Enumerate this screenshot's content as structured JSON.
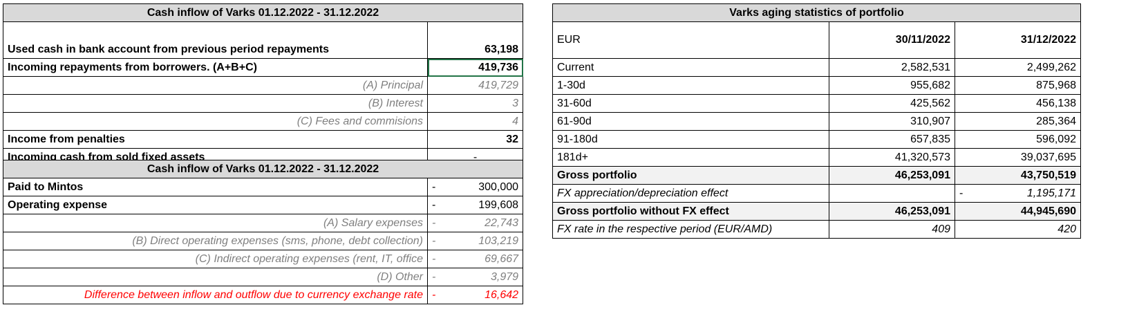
{
  "left_table": {
    "title": "Cash inflow of Varks 01.12.2022 - 31.12.2022",
    "rows": [
      {
        "label": "Used cash in bank account from previous period repayments",
        "value": "63,198"
      },
      {
        "label": "Incoming repayments from borrowers. (A+B+C)",
        "value": "419,736"
      },
      {
        "label": "(A) Principal",
        "value": "419,729"
      },
      {
        "label": "(B) Interest",
        "value": "3"
      },
      {
        "label": "(C) Fees and commisions",
        "value": "4"
      },
      {
        "label": "Income from penalties",
        "value": "32"
      },
      {
        "label": "Incoming cash from sold fixed assets",
        "value": "-"
      }
    ],
    "title2": "Cash inflow of Varks 01.12.2022 - 31.12.2022",
    "rows2": [
      {
        "label": "Paid to Mintos",
        "sign": "-",
        "value": "300,000"
      },
      {
        "label": "Operating expense",
        "sign": "-",
        "value": "199,608"
      },
      {
        "label": "(A) Salary expenses",
        "sign": "-",
        "value": "22,743"
      },
      {
        "label": "(B) Direct operating expenses (sms, phone, debt collection)",
        "sign": "-",
        "value": "103,219"
      },
      {
        "label": "(C) Indirect operating expenses (rent, IT, office",
        "sign": "-",
        "value": "69,667"
      },
      {
        "label": "(D) Other",
        "sign": "-",
        "value": "3,979"
      },
      {
        "label": "Difference between inflow and outflow due to currency exchange rate",
        "sign": "-",
        "value": "16,642"
      }
    ]
  },
  "right_table": {
    "title": "Varks aging statistics of portfolio",
    "col0": "EUR",
    "col1": "30/11/2022",
    "col2": "31/12/2022",
    "rows": [
      {
        "label": "Current",
        "v1": "2,582,531",
        "v2": "2,499,262"
      },
      {
        "label": "1-30d",
        "v1": "955,682",
        "v2": "875,968"
      },
      {
        "label": "31-60d",
        "v1": "425,562",
        "v2": "456,138"
      },
      {
        "label": "61-90d",
        "v1": "310,907",
        "v2": "285,364"
      },
      {
        "label": "91-180d",
        "v1": "657,835",
        "v2": "596,092"
      },
      {
        "label": "181d+",
        "v1": "41,320,573",
        "v2": "39,037,695"
      },
      {
        "label": "Gross portfolio",
        "v1": "46,253,091",
        "v2": "43,750,519"
      },
      {
        "label": "FX appreciation/depreciation effect",
        "v1": "",
        "sign2": "-",
        "v2": "1,195,171"
      },
      {
        "label": "Gross portfolio without FX effect",
        "v1": "46,253,091",
        "v2": "44,945,690"
      },
      {
        "label": "FX rate in the respective period (EUR/AMD)",
        "v1": "409",
        "v2": "420"
      }
    ]
  }
}
